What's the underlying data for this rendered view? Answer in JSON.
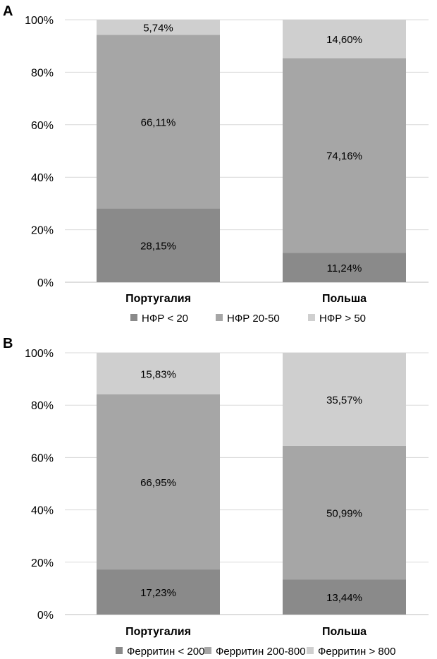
{
  "chart_data": [
    {
      "type": "bar",
      "stacked": true,
      "panel_label": "A",
      "categories": [
        "Португалия",
        "Польша"
      ],
      "series": [
        {
          "name": "НФР < 20",
          "values": [
            28.15,
            11.24
          ],
          "labels": [
            "28,15%",
            "11,24%"
          ],
          "color": "#8a8a8a"
        },
        {
          "name": "НФР 20-50",
          "values": [
            66.11,
            74.16
          ],
          "labels": [
            "66,11%",
            "74,16%"
          ],
          "color": "#a6a6a6"
        },
        {
          "name": "НФР  > 50",
          "values": [
            5.74,
            14.6
          ],
          "labels": [
            "5,74%",
            "14,60%"
          ],
          "color": "#cfcfcf"
        }
      ],
      "ylim": [
        0,
        100
      ],
      "yticks": [
        "0%",
        "20%",
        "40%",
        "60%",
        "80%",
        "100%"
      ],
      "grid": true,
      "legend_position": "bottom"
    },
    {
      "type": "bar",
      "stacked": true,
      "panel_label": "B",
      "categories": [
        "Португалия",
        "Польша"
      ],
      "series": [
        {
          "name": "Ферритин < 200",
          "values": [
            17.23,
            13.44
          ],
          "labels": [
            "17,23%",
            "13,44%"
          ],
          "color": "#8a8a8a"
        },
        {
          "name": "Ферритин 200-800",
          "values": [
            66.95,
            50.99
          ],
          "labels": [
            "66,95%",
            "50,99%"
          ],
          "color": "#a6a6a6"
        },
        {
          "name": "Ферритин > 800",
          "values": [
            15.83,
            35.57
          ],
          "labels": [
            "15,83%",
            "35,57%"
          ],
          "color": "#cfcfcf"
        }
      ],
      "ylim": [
        0,
        100
      ],
      "yticks": [
        "0%",
        "20%",
        "40%",
        "60%",
        "80%",
        "100%"
      ],
      "grid": true,
      "legend_position": "bottom"
    }
  ]
}
